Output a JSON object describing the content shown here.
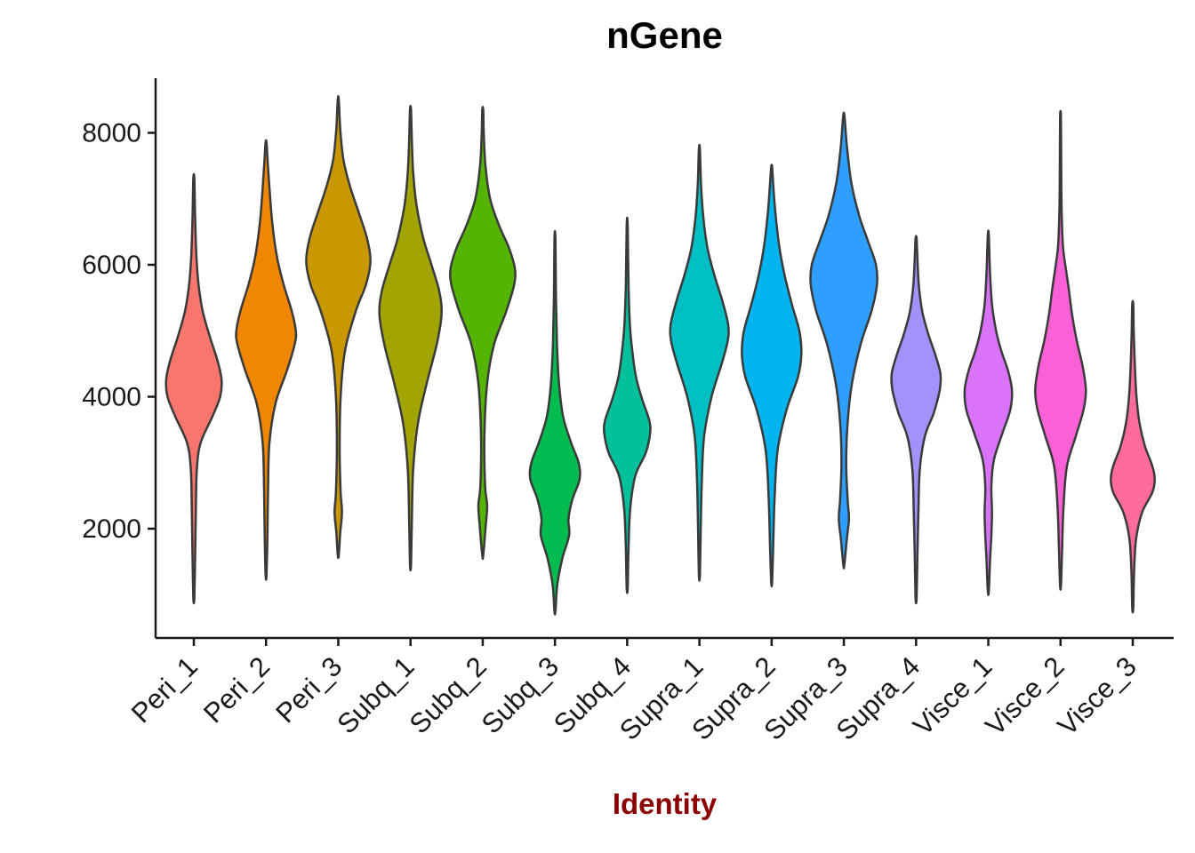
{
  "chart_data": {
    "type": "violin",
    "title": "nGene",
    "xlabel": "Identity",
    "ylabel": "",
    "grid": false,
    "legend": "none",
    "categories": [
      "Peri_1",
      "Peri_2",
      "Peri_3",
      "Subq_1",
      "Subq_2",
      "Subq_3",
      "Subq_4",
      "Supra_1",
      "Supra_2",
      "Supra_3",
      "Supra_4",
      "Visce_1",
      "Visce_2",
      "Visce_3"
    ],
    "y_axis": {
      "ticks": [
        2000,
        4000,
        6000,
        8000
      ],
      "range": [
        700,
        8700
      ]
    },
    "colors": {
      "outline": "#3A3A3A",
      "axis": "#1A1A1A",
      "tick_label": "#1A1A1A",
      "title": "#000000",
      "xlabel": "#8B0000",
      "background": "#FFFFFF"
    },
    "series": [
      {
        "name": "Peri_1",
        "color": "#F8766D",
        "min": 950,
        "max": 7300,
        "peak": 4200,
        "profile": [
          [
            950,
            0.015
          ],
          [
            1600,
            0.04
          ],
          [
            2300,
            0.06
          ],
          [
            2900,
            0.09
          ],
          [
            3300,
            0.2
          ],
          [
            3700,
            0.55
          ],
          [
            4000,
            0.78
          ],
          [
            4250,
            0.82
          ],
          [
            4550,
            0.7
          ],
          [
            4900,
            0.48
          ],
          [
            5300,
            0.26
          ],
          [
            5700,
            0.14
          ],
          [
            6100,
            0.08
          ],
          [
            6700,
            0.04
          ],
          [
            7300,
            0.015
          ]
        ]
      },
      {
        "name": "Peri_2",
        "color": "#EF8700",
        "min": 1300,
        "max": 7850,
        "peak": 4950,
        "profile": [
          [
            1300,
            0.015
          ],
          [
            1900,
            0.04
          ],
          [
            2600,
            0.06
          ],
          [
            3300,
            0.1
          ],
          [
            3900,
            0.28
          ],
          [
            4400,
            0.62
          ],
          [
            4800,
            0.85
          ],
          [
            5000,
            0.88
          ],
          [
            5300,
            0.76
          ],
          [
            5700,
            0.52
          ],
          [
            6100,
            0.33
          ],
          [
            6600,
            0.19
          ],
          [
            7100,
            0.11
          ],
          [
            7550,
            0.05
          ],
          [
            7850,
            0.015
          ]
        ]
      },
      {
        "name": "Peri_3",
        "color": "#C99800",
        "min": 1600,
        "max": 8500,
        "peak": 6050,
        "profile": [
          [
            1600,
            0.015
          ],
          [
            1950,
            0.06
          ],
          [
            2250,
            0.11
          ],
          [
            2550,
            0.07
          ],
          [
            3200,
            0.04
          ],
          [
            4000,
            0.07
          ],
          [
            4700,
            0.2
          ],
          [
            5300,
            0.52
          ],
          [
            5700,
            0.82
          ],
          [
            6050,
            0.95
          ],
          [
            6400,
            0.85
          ],
          [
            6800,
            0.6
          ],
          [
            7200,
            0.34
          ],
          [
            7600,
            0.15
          ],
          [
            8050,
            0.06
          ],
          [
            8500,
            0.015
          ]
        ]
      },
      {
        "name": "Subq_1",
        "color": "#A2A400",
        "min": 1450,
        "max": 8350,
        "peak": 5250,
        "profile": [
          [
            1450,
            0.015
          ],
          [
            2100,
            0.04
          ],
          [
            2900,
            0.08
          ],
          [
            3600,
            0.22
          ],
          [
            4200,
            0.48
          ],
          [
            4800,
            0.78
          ],
          [
            5250,
            0.92
          ],
          [
            5600,
            0.85
          ],
          [
            6000,
            0.62
          ],
          [
            6400,
            0.38
          ],
          [
            6900,
            0.18
          ],
          [
            7400,
            0.08
          ],
          [
            7900,
            0.04
          ],
          [
            8350,
            0.015
          ]
        ]
      },
      {
        "name": "Subq_2",
        "color": "#54B400",
        "min": 1600,
        "max": 8350,
        "peak": 5950,
        "profile": [
          [
            1600,
            0.015
          ],
          [
            2050,
            0.09
          ],
          [
            2350,
            0.13
          ],
          [
            2650,
            0.07
          ],
          [
            3400,
            0.05
          ],
          [
            4200,
            0.13
          ],
          [
            4800,
            0.34
          ],
          [
            5300,
            0.7
          ],
          [
            5700,
            0.93
          ],
          [
            5950,
            0.95
          ],
          [
            6250,
            0.78
          ],
          [
            6600,
            0.48
          ],
          [
            7000,
            0.22
          ],
          [
            7500,
            0.08
          ],
          [
            8000,
            0.03
          ],
          [
            8350,
            0.015
          ]
        ]
      },
      {
        "name": "Subq_3",
        "color": "#00BB4E",
        "min": 750,
        "max": 6400,
        "peak": 2850,
        "profile": [
          [
            750,
            0.015
          ],
          [
            1150,
            0.07
          ],
          [
            1550,
            0.22
          ],
          [
            1900,
            0.42
          ],
          [
            2150,
            0.4
          ],
          [
            2450,
            0.52
          ],
          [
            2750,
            0.73
          ],
          [
            3000,
            0.7
          ],
          [
            3300,
            0.48
          ],
          [
            3700,
            0.24
          ],
          [
            4200,
            0.12
          ],
          [
            4800,
            0.06
          ],
          [
            5500,
            0.03
          ],
          [
            6400,
            0.015
          ]
        ]
      },
      {
        "name": "Subq_4",
        "color": "#00C19C",
        "min": 1100,
        "max": 6600,
        "peak": 3450,
        "profile": [
          [
            1100,
            0.015
          ],
          [
            1700,
            0.04
          ],
          [
            2300,
            0.09
          ],
          [
            2800,
            0.24
          ],
          [
            3150,
            0.55
          ],
          [
            3450,
            0.68
          ],
          [
            3650,
            0.65
          ],
          [
            3950,
            0.45
          ],
          [
            4300,
            0.26
          ],
          [
            4700,
            0.15
          ],
          [
            5100,
            0.08
          ],
          [
            5700,
            0.04
          ],
          [
            6600,
            0.015
          ]
        ]
      },
      {
        "name": "Supra_1",
        "color": "#00BFC4",
        "min": 1300,
        "max": 7750,
        "peak": 5000,
        "profile": [
          [
            1300,
            0.015
          ],
          [
            2000,
            0.04
          ],
          [
            2700,
            0.07
          ],
          [
            3400,
            0.14
          ],
          [
            4000,
            0.36
          ],
          [
            4500,
            0.66
          ],
          [
            4850,
            0.84
          ],
          [
            5100,
            0.85
          ],
          [
            5450,
            0.68
          ],
          [
            5850,
            0.44
          ],
          [
            6250,
            0.24
          ],
          [
            6700,
            0.12
          ],
          [
            7200,
            0.05
          ],
          [
            7750,
            0.015
          ]
        ]
      },
      {
        "name": "Supra_2",
        "color": "#00B4F0",
        "min": 1200,
        "max": 7480,
        "peak": 4700,
        "profile": [
          [
            1200,
            0.015
          ],
          [
            1800,
            0.05
          ],
          [
            2500,
            0.09
          ],
          [
            3200,
            0.18
          ],
          [
            3800,
            0.44
          ],
          [
            4300,
            0.78
          ],
          [
            4650,
            0.88
          ],
          [
            5000,
            0.82
          ],
          [
            5400,
            0.6
          ],
          [
            5850,
            0.38
          ],
          [
            6300,
            0.22
          ],
          [
            6800,
            0.11
          ],
          [
            7200,
            0.05
          ],
          [
            7480,
            0.015
          ]
        ]
      },
      {
        "name": "Supra_3",
        "color": "#2E9FFE",
        "min": 1450,
        "max": 8250,
        "peak": 5750,
        "profile": [
          [
            1450,
            0.015
          ],
          [
            1850,
            0.09
          ],
          [
            2150,
            0.15
          ],
          [
            2450,
            0.11
          ],
          [
            3000,
            0.07
          ],
          [
            3600,
            0.11
          ],
          [
            4200,
            0.24
          ],
          [
            4800,
            0.5
          ],
          [
            5300,
            0.82
          ],
          [
            5700,
            0.98
          ],
          [
            6000,
            0.95
          ],
          [
            6350,
            0.72
          ],
          [
            6750,
            0.45
          ],
          [
            7250,
            0.22
          ],
          [
            7800,
            0.09
          ],
          [
            8250,
            0.02
          ]
        ]
      },
      {
        "name": "Supra_4",
        "color": "#A492FC",
        "min": 950,
        "max": 6400,
        "peak": 4350,
        "profile": [
          [
            950,
            0.015
          ],
          [
            1600,
            0.04
          ],
          [
            2300,
            0.07
          ],
          [
            2900,
            0.11
          ],
          [
            3400,
            0.26
          ],
          [
            3750,
            0.52
          ],
          [
            4100,
            0.7
          ],
          [
            4350,
            0.72
          ],
          [
            4650,
            0.56
          ],
          [
            4950,
            0.36
          ],
          [
            5300,
            0.18
          ],
          [
            5700,
            0.08
          ],
          [
            6100,
            0.04
          ],
          [
            6400,
            0.015
          ]
        ]
      },
      {
        "name": "Visce_1",
        "color": "#D873FA",
        "min": 1050,
        "max": 6450,
        "peak": 4100,
        "profile": [
          [
            1050,
            0.015
          ],
          [
            1500,
            0.05
          ],
          [
            1900,
            0.09
          ],
          [
            2250,
            0.11
          ],
          [
            2650,
            0.09
          ],
          [
            3050,
            0.17
          ],
          [
            3450,
            0.42
          ],
          [
            3800,
            0.65
          ],
          [
            4100,
            0.7
          ],
          [
            4400,
            0.58
          ],
          [
            4700,
            0.38
          ],
          [
            5000,
            0.23
          ],
          [
            5400,
            0.11
          ],
          [
            5900,
            0.05
          ],
          [
            6450,
            0.015
          ]
        ]
      },
      {
        "name": "Visce_2",
        "color": "#FB61D7",
        "min": 1150,
        "max": 8250,
        "peak": 4100,
        "profile": [
          [
            1150,
            0.015
          ],
          [
            1750,
            0.05
          ],
          [
            2350,
            0.09
          ],
          [
            2950,
            0.19
          ],
          [
            3400,
            0.45
          ],
          [
            3800,
            0.68
          ],
          [
            4100,
            0.75
          ],
          [
            4450,
            0.66
          ],
          [
            4850,
            0.48
          ],
          [
            5250,
            0.34
          ],
          [
            5650,
            0.24
          ],
          [
            6000,
            0.14
          ],
          [
            6300,
            0.07
          ],
          [
            6900,
            0.03
          ],
          [
            7600,
            0.02
          ],
          [
            8250,
            0.012
          ]
        ]
      },
      {
        "name": "Visce_3",
        "color": "#FF6B9A",
        "min": 800,
        "max": 5400,
        "peak": 2750,
        "profile": [
          [
            800,
            0.015
          ],
          [
            1350,
            0.04
          ],
          [
            1850,
            0.1
          ],
          [
            2250,
            0.28
          ],
          [
            2550,
            0.58
          ],
          [
            2750,
            0.65
          ],
          [
            2950,
            0.58
          ],
          [
            3250,
            0.36
          ],
          [
            3600,
            0.2
          ],
          [
            4000,
            0.11
          ],
          [
            4500,
            0.06
          ],
          [
            5000,
            0.03
          ],
          [
            5400,
            0.015
          ]
        ]
      }
    ]
  }
}
